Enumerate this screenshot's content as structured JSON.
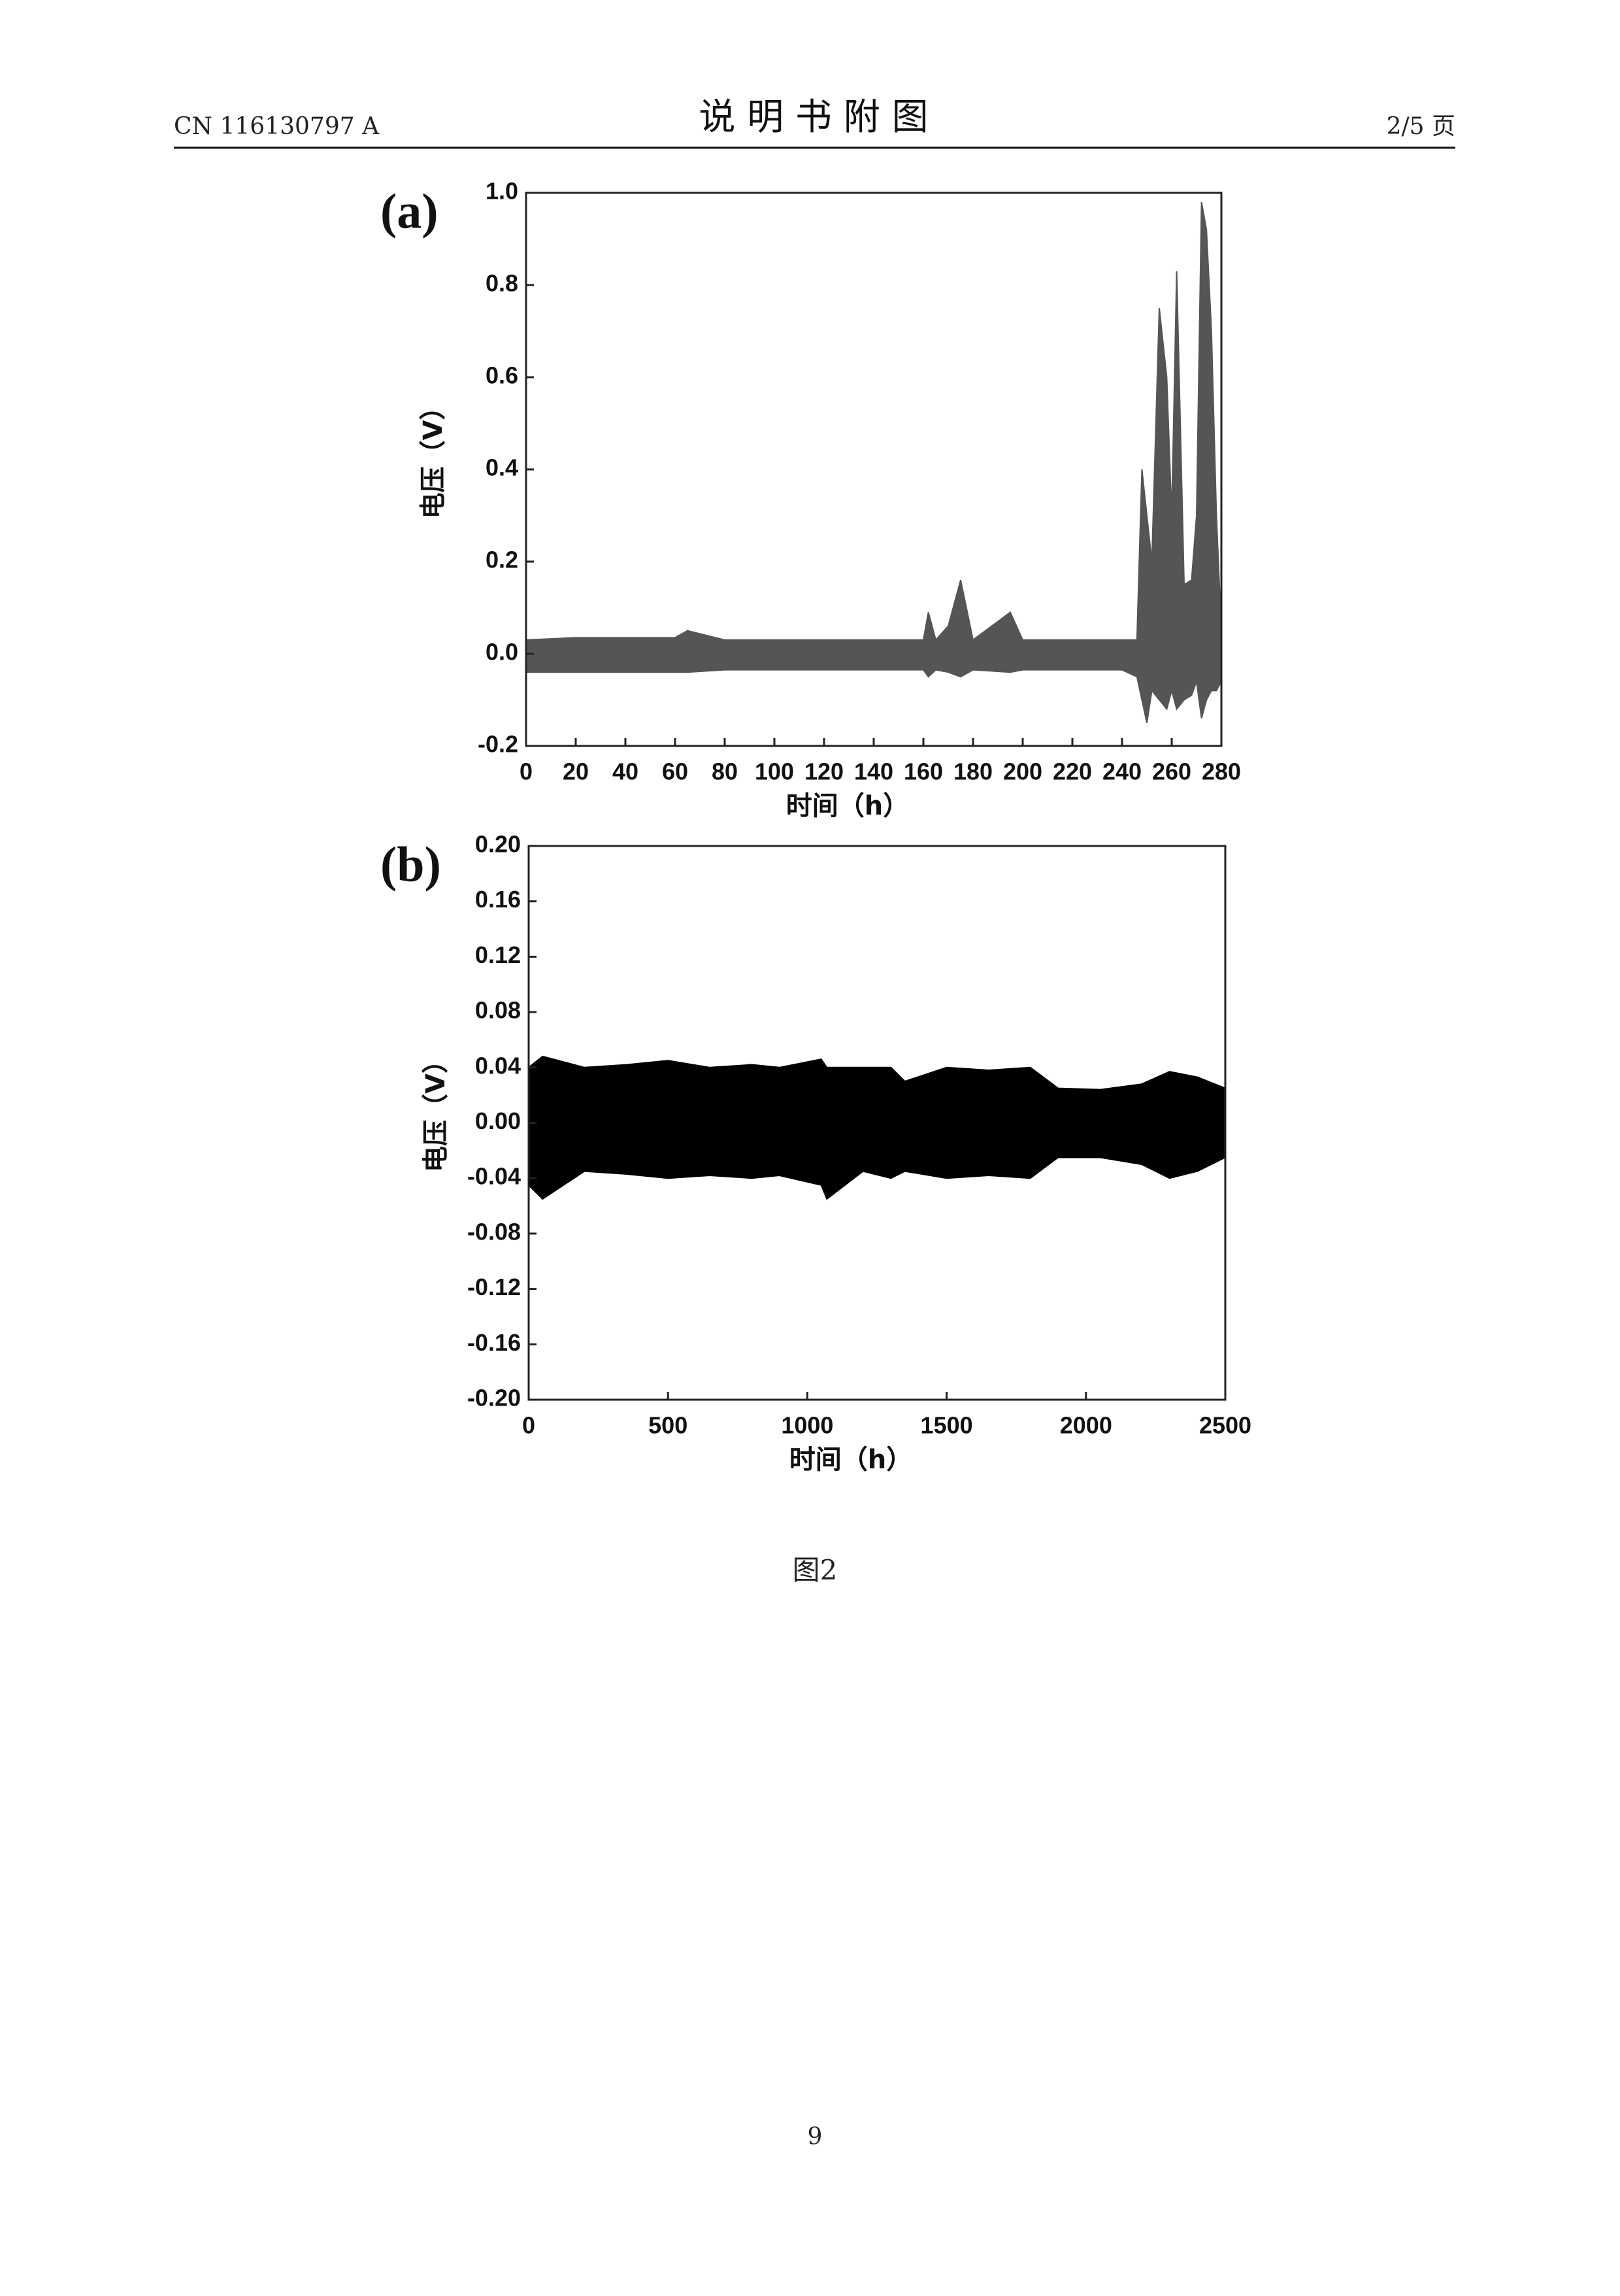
{
  "header": {
    "left": "CN 116130797 A",
    "title": "说 明 书 附 图",
    "right": "2/5 页"
  },
  "chart_data": [
    {
      "type": "area",
      "panel": "(a)",
      "y_label": "电压（V）",
      "x_label": "时间（h）",
      "x": [
        0,
        20,
        40,
        60,
        65,
        80,
        100,
        120,
        140,
        160,
        162,
        165,
        170,
        175,
        180,
        195,
        200,
        220,
        240,
        246,
        248,
        250,
        252,
        255,
        258,
        260,
        262,
        265,
        268,
        270,
        272,
        274,
        276,
        278,
        280
      ],
      "series": [
        {
          "color": "#555555",
          "values": [
            0.03,
            0.035,
            0.035,
            0.035,
            0.05,
            0.03,
            0.03,
            0.03,
            0.03,
            0.03,
            0.09,
            0.03,
            0.06,
            0.16,
            0.03,
            0.09,
            0.03,
            0.03,
            0.03,
            0.03,
            0.4,
            0.3,
            0.2,
            0.75,
            0.6,
            0.3,
            0.83,
            0.15,
            0.16,
            0.3,
            0.98,
            0.92,
            0.7,
            0.3,
            0.05
          ]
        },
        {
          "color": "#555555",
          "values": [
            -0.04,
            -0.04,
            -0.04,
            -0.04,
            -0.04,
            -0.035,
            -0.035,
            -0.035,
            -0.035,
            -0.035,
            -0.05,
            -0.035,
            -0.04,
            -0.05,
            -0.035,
            -0.04,
            -0.035,
            -0.035,
            -0.035,
            -0.05,
            -0.1,
            -0.15,
            -0.08,
            -0.1,
            -0.12,
            -0.08,
            -0.12,
            -0.1,
            -0.09,
            -0.06,
            -0.14,
            -0.1,
            -0.08,
            -0.08,
            -0.06
          ]
        }
      ],
      "xlim": [
        0,
        280
      ],
      "xticks": [
        0,
        20,
        40,
        60,
        80,
        100,
        120,
        140,
        160,
        180,
        200,
        220,
        240,
        260,
        280
      ],
      "ylim": [
        -0.2,
        1.0
      ],
      "yticks": [
        -0.2,
        {
          "value": 0,
          "label": "0.0"
        },
        0.2,
        0.4,
        0.6,
        0.8,
        {
          "value": 1,
          "label": "1.0"
        }
      ]
    },
    {
      "type": "area",
      "panel": "(b)",
      "y_label": "电压（V）",
      "x_label": "时间（h）",
      "x": [
        0,
        50,
        200,
        350,
        500,
        650,
        800,
        900,
        1050,
        1070,
        1200,
        1300,
        1350,
        1500,
        1650,
        1800,
        1900,
        2050,
        2200,
        2300,
        2400,
        2500
      ],
      "series": [
        {
          "color": "#000000",
          "values": [
            0.04,
            0.048,
            0.04,
            0.042,
            0.045,
            0.04,
            0.042,
            0.04,
            0.046,
            0.04,
            0.04,
            0.04,
            0.03,
            0.04,
            0.038,
            0.04,
            0.025,
            0.024,
            0.028,
            0.037,
            0.033,
            0.025
          ]
        },
        {
          "color": "#000000",
          "values": [
            -0.045,
            -0.055,
            -0.035,
            -0.037,
            -0.04,
            -0.038,
            -0.04,
            -0.038,
            -0.045,
            -0.055,
            -0.035,
            -0.04,
            -0.035,
            -0.04,
            -0.038,
            -0.04,
            -0.025,
            -0.025,
            -0.03,
            -0.04,
            -0.035,
            -0.025
          ]
        }
      ],
      "xlim": [
        0,
        2500
      ],
      "xticks": [
        0,
        500,
        1000,
        1500,
        2000,
        2500
      ],
      "ylim": [
        -0.2,
        0.2
      ],
      "yticks": [
        {
          "value": -0.2,
          "label": "-0.20"
        },
        {
          "value": -0.16,
          "label": "-0.16"
        },
        {
          "value": -0.12,
          "label": "-0.12"
        },
        {
          "value": -0.08,
          "label": "-0.08"
        },
        {
          "value": -0.04,
          "label": "-0.04"
        },
        {
          "value": 0,
          "label": "0.00"
        },
        {
          "value": 0.04,
          "label": "0.04"
        },
        {
          "value": 0.08,
          "label": "0.08"
        },
        {
          "value": 0.12,
          "label": "0.12"
        },
        {
          "value": 0.16,
          "label": "0.16"
        },
        {
          "value": 0.2,
          "label": "0.20"
        }
      ]
    }
  ],
  "caption": "图2",
  "page_number": "9"
}
